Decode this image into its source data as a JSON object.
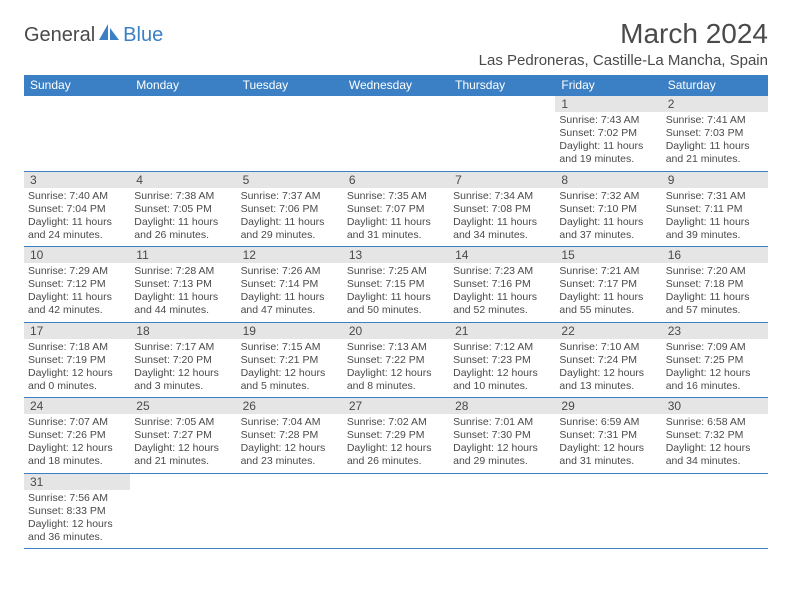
{
  "logo": {
    "text1": "General",
    "text2": "Blue"
  },
  "title": "March 2024",
  "location": "Las Pedroneras, Castille-La Mancha, Spain",
  "colors": {
    "brand": "#3b7fc4",
    "text": "#4a4a4a",
    "daynum_bg": "#e5e5e5",
    "bg": "#ffffff"
  },
  "typography": {
    "title_fontsize": 28,
    "location_fontsize": 15,
    "header_fontsize": 12,
    "daynum_fontsize": 12,
    "body_fontsize": 10.5
  },
  "weekdays": [
    "Sunday",
    "Monday",
    "Tuesday",
    "Wednesday",
    "Thursday",
    "Friday",
    "Saturday"
  ],
  "weeks": [
    [
      null,
      null,
      null,
      null,
      null,
      {
        "n": "1",
        "sunrise": "Sunrise: 7:43 AM",
        "sunset": "Sunset: 7:02 PM",
        "daylight": "Daylight: 11 hours and 19 minutes."
      },
      {
        "n": "2",
        "sunrise": "Sunrise: 7:41 AM",
        "sunset": "Sunset: 7:03 PM",
        "daylight": "Daylight: 11 hours and 21 minutes."
      }
    ],
    [
      {
        "n": "3",
        "sunrise": "Sunrise: 7:40 AM",
        "sunset": "Sunset: 7:04 PM",
        "daylight": "Daylight: 11 hours and 24 minutes."
      },
      {
        "n": "4",
        "sunrise": "Sunrise: 7:38 AM",
        "sunset": "Sunset: 7:05 PM",
        "daylight": "Daylight: 11 hours and 26 minutes."
      },
      {
        "n": "5",
        "sunrise": "Sunrise: 7:37 AM",
        "sunset": "Sunset: 7:06 PM",
        "daylight": "Daylight: 11 hours and 29 minutes."
      },
      {
        "n": "6",
        "sunrise": "Sunrise: 7:35 AM",
        "sunset": "Sunset: 7:07 PM",
        "daylight": "Daylight: 11 hours and 31 minutes."
      },
      {
        "n": "7",
        "sunrise": "Sunrise: 7:34 AM",
        "sunset": "Sunset: 7:08 PM",
        "daylight": "Daylight: 11 hours and 34 minutes."
      },
      {
        "n": "8",
        "sunrise": "Sunrise: 7:32 AM",
        "sunset": "Sunset: 7:10 PM",
        "daylight": "Daylight: 11 hours and 37 minutes."
      },
      {
        "n": "9",
        "sunrise": "Sunrise: 7:31 AM",
        "sunset": "Sunset: 7:11 PM",
        "daylight": "Daylight: 11 hours and 39 minutes."
      }
    ],
    [
      {
        "n": "10",
        "sunrise": "Sunrise: 7:29 AM",
        "sunset": "Sunset: 7:12 PM",
        "daylight": "Daylight: 11 hours and 42 minutes."
      },
      {
        "n": "11",
        "sunrise": "Sunrise: 7:28 AM",
        "sunset": "Sunset: 7:13 PM",
        "daylight": "Daylight: 11 hours and 44 minutes."
      },
      {
        "n": "12",
        "sunrise": "Sunrise: 7:26 AM",
        "sunset": "Sunset: 7:14 PM",
        "daylight": "Daylight: 11 hours and 47 minutes."
      },
      {
        "n": "13",
        "sunrise": "Sunrise: 7:25 AM",
        "sunset": "Sunset: 7:15 PM",
        "daylight": "Daylight: 11 hours and 50 minutes."
      },
      {
        "n": "14",
        "sunrise": "Sunrise: 7:23 AM",
        "sunset": "Sunset: 7:16 PM",
        "daylight": "Daylight: 11 hours and 52 minutes."
      },
      {
        "n": "15",
        "sunrise": "Sunrise: 7:21 AM",
        "sunset": "Sunset: 7:17 PM",
        "daylight": "Daylight: 11 hours and 55 minutes."
      },
      {
        "n": "16",
        "sunrise": "Sunrise: 7:20 AM",
        "sunset": "Sunset: 7:18 PM",
        "daylight": "Daylight: 11 hours and 57 minutes."
      }
    ],
    [
      {
        "n": "17",
        "sunrise": "Sunrise: 7:18 AM",
        "sunset": "Sunset: 7:19 PM",
        "daylight": "Daylight: 12 hours and 0 minutes."
      },
      {
        "n": "18",
        "sunrise": "Sunrise: 7:17 AM",
        "sunset": "Sunset: 7:20 PM",
        "daylight": "Daylight: 12 hours and 3 minutes."
      },
      {
        "n": "19",
        "sunrise": "Sunrise: 7:15 AM",
        "sunset": "Sunset: 7:21 PM",
        "daylight": "Daylight: 12 hours and 5 minutes."
      },
      {
        "n": "20",
        "sunrise": "Sunrise: 7:13 AM",
        "sunset": "Sunset: 7:22 PM",
        "daylight": "Daylight: 12 hours and 8 minutes."
      },
      {
        "n": "21",
        "sunrise": "Sunrise: 7:12 AM",
        "sunset": "Sunset: 7:23 PM",
        "daylight": "Daylight: 12 hours and 10 minutes."
      },
      {
        "n": "22",
        "sunrise": "Sunrise: 7:10 AM",
        "sunset": "Sunset: 7:24 PM",
        "daylight": "Daylight: 12 hours and 13 minutes."
      },
      {
        "n": "23",
        "sunrise": "Sunrise: 7:09 AM",
        "sunset": "Sunset: 7:25 PM",
        "daylight": "Daylight: 12 hours and 16 minutes."
      }
    ],
    [
      {
        "n": "24",
        "sunrise": "Sunrise: 7:07 AM",
        "sunset": "Sunset: 7:26 PM",
        "daylight": "Daylight: 12 hours and 18 minutes."
      },
      {
        "n": "25",
        "sunrise": "Sunrise: 7:05 AM",
        "sunset": "Sunset: 7:27 PM",
        "daylight": "Daylight: 12 hours and 21 minutes."
      },
      {
        "n": "26",
        "sunrise": "Sunrise: 7:04 AM",
        "sunset": "Sunset: 7:28 PM",
        "daylight": "Daylight: 12 hours and 23 minutes."
      },
      {
        "n": "27",
        "sunrise": "Sunrise: 7:02 AM",
        "sunset": "Sunset: 7:29 PM",
        "daylight": "Daylight: 12 hours and 26 minutes."
      },
      {
        "n": "28",
        "sunrise": "Sunrise: 7:01 AM",
        "sunset": "Sunset: 7:30 PM",
        "daylight": "Daylight: 12 hours and 29 minutes."
      },
      {
        "n": "29",
        "sunrise": "Sunrise: 6:59 AM",
        "sunset": "Sunset: 7:31 PM",
        "daylight": "Daylight: 12 hours and 31 minutes."
      },
      {
        "n": "30",
        "sunrise": "Sunrise: 6:58 AM",
        "sunset": "Sunset: 7:32 PM",
        "daylight": "Daylight: 12 hours and 34 minutes."
      }
    ],
    [
      {
        "n": "31",
        "sunrise": "Sunrise: 7:56 AM",
        "sunset": "Sunset: 8:33 PM",
        "daylight": "Daylight: 12 hours and 36 minutes."
      },
      null,
      null,
      null,
      null,
      null,
      null
    ]
  ]
}
